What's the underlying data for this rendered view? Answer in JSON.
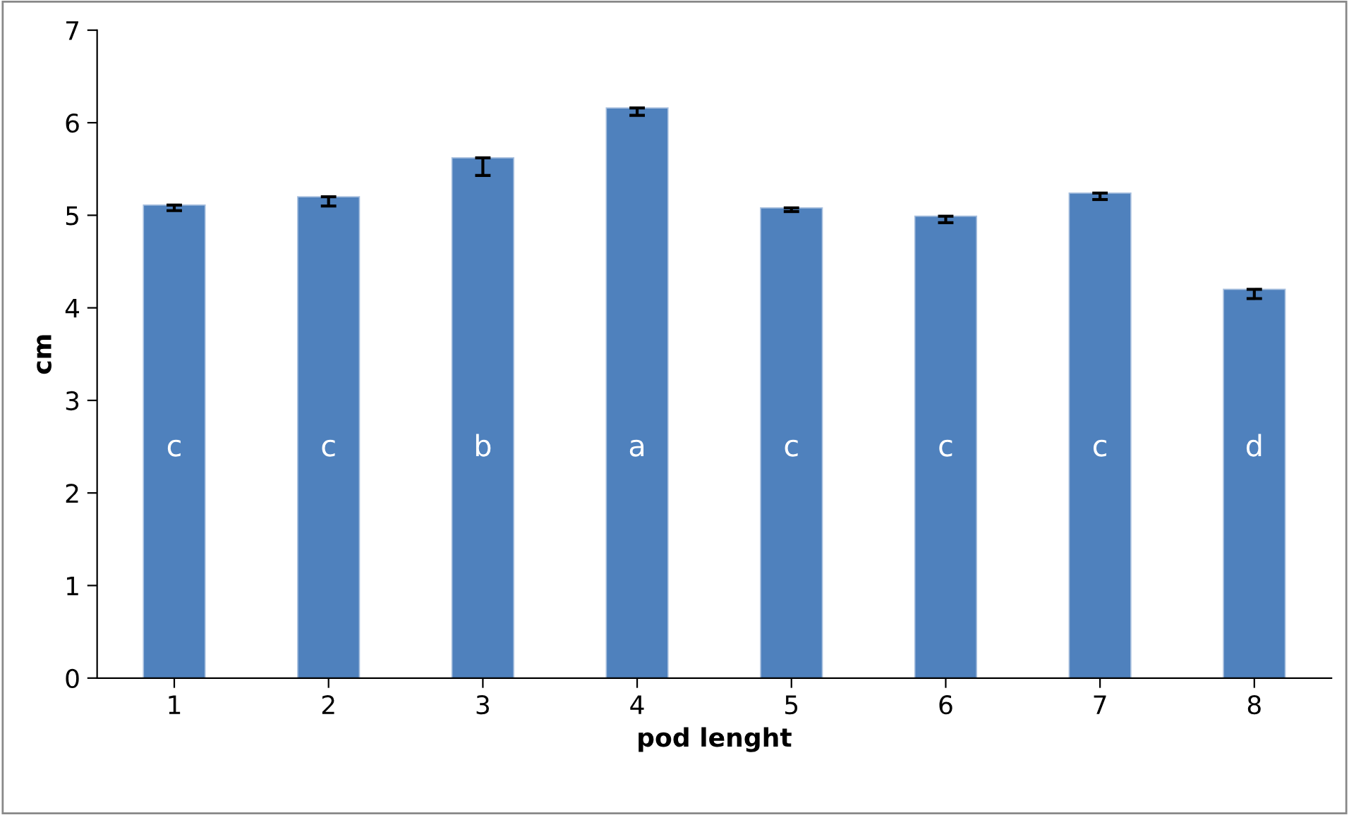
{
  "chart_data": {
    "type": "bar",
    "xlabel": "pod lenght",
    "ylabel": "cm",
    "categories": [
      "1",
      "2",
      "3",
      "4",
      "5",
      "6",
      "7",
      "8"
    ],
    "series": [
      {
        "color": "#4f81bd",
        "values": [
          5.11,
          5.2,
          5.62,
          6.16,
          5.08,
          4.99,
          5.24,
          4.2
        ],
        "errors": [
          [
            5.05,
            5.11
          ],
          [
            5.1,
            5.2
          ],
          [
            5.43,
            5.62
          ],
          [
            6.08,
            6.16
          ],
          [
            5.04,
            5.08
          ],
          [
            4.92,
            4.99
          ],
          [
            5.17,
            5.24
          ],
          [
            4.1,
            4.2
          ]
        ]
      }
    ],
    "ylim": [
      0,
      7
    ],
    "yticks": [
      0,
      1,
      2,
      3,
      4,
      5,
      6,
      7
    ],
    "grid": false,
    "legend": false,
    "annotations": [
      "c",
      "c",
      "b",
      "a",
      "c",
      "c",
      "c",
      "d"
    ]
  }
}
